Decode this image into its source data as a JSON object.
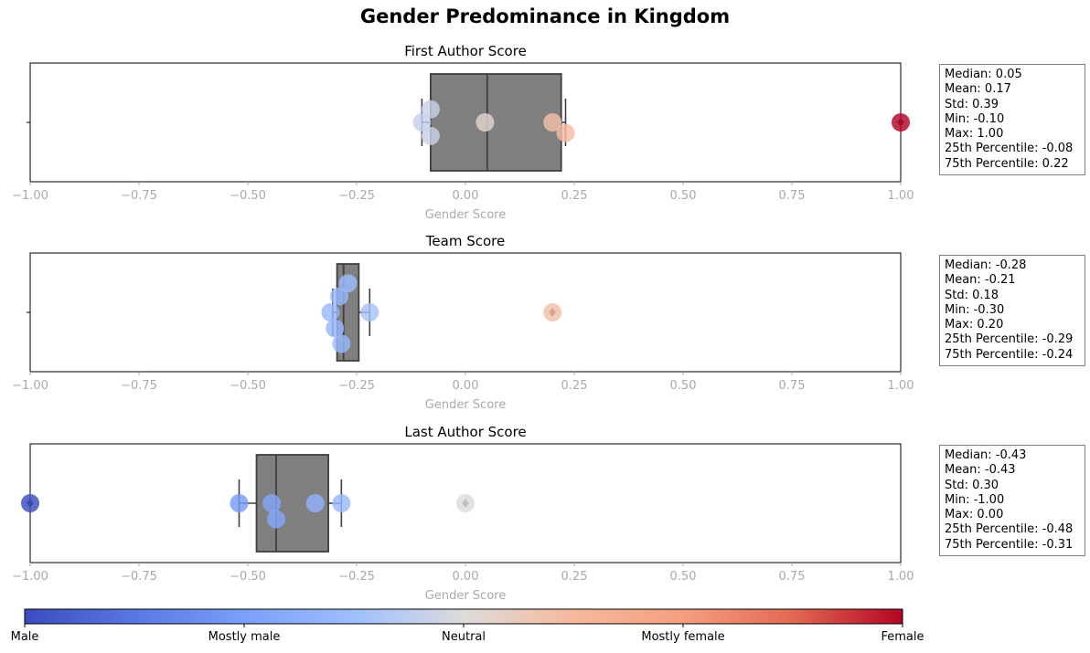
{
  "title": "Gender Predominance in Kingdom",
  "chart_data": {
    "type": "box",
    "xlim": [
      -1.0,
      1.0
    ],
    "xticks": [
      "−1.00",
      "−0.75",
      "−0.50",
      "−0.25",
      "0.00",
      "0.25",
      "0.50",
      "0.75",
      "1.00"
    ],
    "xtick_values": [
      -1.0,
      -0.75,
      -0.5,
      -0.25,
      0.0,
      0.25,
      0.5,
      0.75,
      1.0
    ],
    "xlabel": "Gender Score",
    "panels": [
      {
        "title": "First Author Score",
        "box": {
          "q1": -0.08,
          "median": 0.05,
          "q3": 0.22,
          "whisker_low": -0.1,
          "whisker_high": 0.23
        },
        "outliers": [
          1.0
        ],
        "points": [
          {
            "x": -0.1,
            "jitter": 0.0
          },
          {
            "x": -0.08,
            "jitter": -0.27
          },
          {
            "x": -0.08,
            "jitter": 0.28
          },
          {
            "x": 0.045,
            "jitter": 0.0
          },
          {
            "x": 0.2,
            "jitter": 0.0
          },
          {
            "x": 0.23,
            "jitter": 0.22
          },
          {
            "x": 1.0,
            "jitter": 0.0
          }
        ],
        "stats": [
          "Median: 0.05",
          "Mean: 0.17",
          "Std: 0.39",
          "Min: -0.10",
          "Max: 1.00",
          "25th Percentile: -0.08",
          "75th Percentile: 0.22"
        ]
      },
      {
        "title": "Team Score",
        "box": {
          "q1": -0.295,
          "median": -0.28,
          "q3": -0.245,
          "whisker_low": -0.305,
          "whisker_high": -0.22
        },
        "outliers": [
          0.2
        ],
        "points": [
          {
            "x": -0.27,
            "jitter": -0.6
          },
          {
            "x": -0.29,
            "jitter": -0.33
          },
          {
            "x": -0.31,
            "jitter": 0.0
          },
          {
            "x": -0.22,
            "jitter": 0.0
          },
          {
            "x": -0.3,
            "jitter": 0.33
          },
          {
            "x": -0.285,
            "jitter": 0.65
          },
          {
            "x": 0.2,
            "jitter": 0.0
          }
        ],
        "stats": [
          "Median: -0.28",
          "Mean: -0.21",
          "Std: 0.18",
          "Min: -0.30",
          "Max: 0.20",
          "25th Percentile: -0.29",
          "75th Percentile: -0.24"
        ]
      },
      {
        "title": "Last Author Score",
        "box": {
          "q1": -0.48,
          "median": -0.435,
          "q3": -0.315,
          "whisker_low": -0.52,
          "whisker_high": -0.285
        },
        "outliers": [
          -1.0,
          0.0
        ],
        "points": [
          {
            "x": -1.0,
            "jitter": 0.0
          },
          {
            "x": -0.52,
            "jitter": 0.0
          },
          {
            "x": -0.445,
            "jitter": 0.0
          },
          {
            "x": -0.345,
            "jitter": 0.0
          },
          {
            "x": -0.285,
            "jitter": 0.0
          },
          {
            "x": -0.435,
            "jitter": 0.33
          },
          {
            "x": 0.0,
            "jitter": 0.0
          }
        ],
        "stats": [
          "Median: -0.43",
          "Mean: -0.43",
          "Std: 0.30",
          "Min: -1.00",
          "Max: 0.00",
          "25th Percentile: -0.48",
          "75th Percentile: -0.31"
        ]
      }
    ],
    "colorbar": {
      "colormap": "coolwarm",
      "labels": [
        "Male",
        "Mostly male",
        "Neutral",
        "Mostly female",
        "Female"
      ],
      "colors": [
        "#3b4cc0",
        "#7b9ff9",
        "#dddcdc",
        "#f59f80",
        "#b40426"
      ]
    },
    "box_color": "#808080",
    "line_color": "#3f3f3f",
    "tick_color": "#a9a9a9"
  }
}
